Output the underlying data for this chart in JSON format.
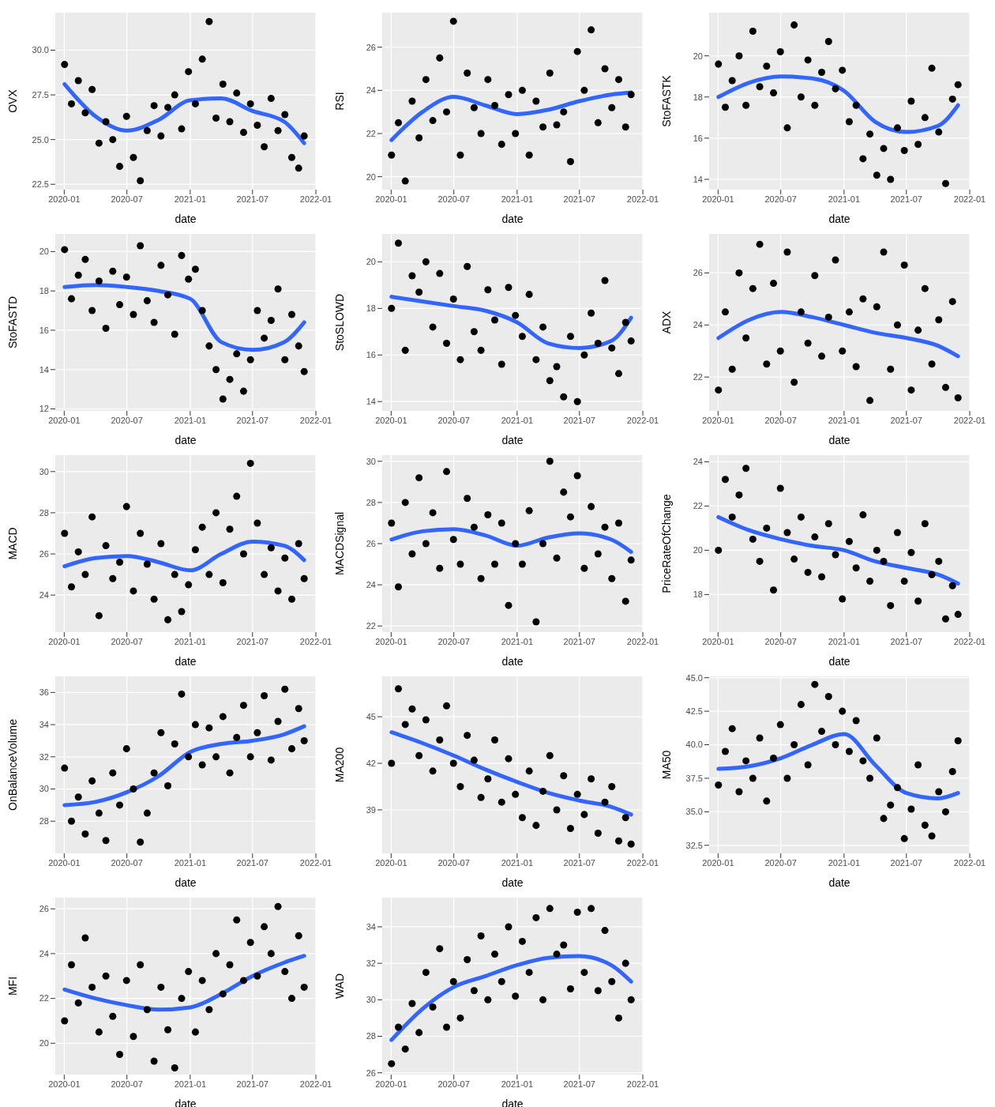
{
  "chart_data": [
    {
      "type": "scatter",
      "xlabel": "date",
      "ylabel": "OVX",
      "marker": "circle",
      "grid": true,
      "xlim": [
        "2019-12-06",
        "2022-01-01"
      ],
      "xticks": [
        "2020-01",
        "2020-07",
        "2021-01",
        "2021-07",
        "2022-01"
      ],
      "ylim": [
        22.2,
        32.1
      ],
      "yticks": [
        {
          "value": 22.5,
          "label": "22.5"
        },
        {
          "value": 25,
          "label": "25.0"
        },
        {
          "value": 27.5,
          "label": "27.5"
        },
        {
          "value": 30,
          "label": "30.0"
        }
      ],
      "x": [
        "2020-01-02",
        "2020-01-22",
        "2020-02-11",
        "2020-03-02",
        "2020-03-22",
        "2020-04-11",
        "2020-05-01",
        "2020-05-21",
        "2020-06-10",
        "2020-06-30",
        "2020-07-20",
        "2020-08-09",
        "2020-08-29",
        "2020-09-18",
        "2020-10-08",
        "2020-10-28",
        "2020-11-17",
        "2020-12-07",
        "2020-12-27",
        "2021-01-16",
        "2021-02-05",
        "2021-02-25",
        "2021-03-17",
        "2021-04-06",
        "2021-04-26",
        "2021-05-16",
        "2021-06-05",
        "2021-06-25",
        "2021-07-15",
        "2021-08-04",
        "2021-08-24",
        "2021-09-13",
        "2021-10-03",
        "2021-10-23",
        "2021-11-12",
        "2021-11-28"
      ],
      "series": [
        {
          "color": "#000000",
          "values": [
            29.2,
            27.0,
            28.3,
            26.5,
            27.8,
            24.8,
            26.0,
            25.0,
            23.5,
            26.3,
            24.0,
            22.7,
            25.5,
            26.9,
            25.2,
            26.8,
            27.5,
            25.6,
            28.8,
            27.0,
            29.5,
            31.6,
            26.2,
            28.1,
            26.0,
            27.6,
            25.4,
            27.0,
            25.8,
            24.6,
            27.3,
            25.5,
            26.4,
            24.0,
            23.4,
            25.2
          ]
        },
        {
          "type": "line",
          "marker": "none",
          "color": "#3366ff",
          "x": [
            "2020-01-02",
            "2020-04-01",
            "2020-07-01",
            "2020-10-01",
            "2021-01-01",
            "2021-04-01",
            "2021-07-01",
            "2021-10-01",
            "2021-11-28"
          ],
          "values": [
            28.1,
            26.3,
            25.5,
            26.1,
            27.2,
            27.3,
            26.6,
            26.0,
            24.8
          ]
        }
      ]
    },
    {
      "type": "scatter",
      "xlabel": "date",
      "ylabel": "RSI",
      "marker": "circle",
      "grid": true,
      "xlim": [
        "2019-12-06",
        "2022-01-01"
      ],
      "xticks": [
        "2020-01",
        "2020-07",
        "2021-01",
        "2021-07",
        "2022-01"
      ],
      "ylim": [
        19.4,
        27.6
      ],
      "yticks": [
        20,
        22,
        24,
        26
      ],
      "x": [
        "2020-01-02",
        "2020-01-22",
        "2020-02-11",
        "2020-03-02",
        "2020-03-22",
        "2020-04-11",
        "2020-05-01",
        "2020-05-21",
        "2020-06-10",
        "2020-06-30",
        "2020-07-20",
        "2020-08-09",
        "2020-08-29",
        "2020-09-18",
        "2020-10-08",
        "2020-10-28",
        "2020-11-17",
        "2020-12-07",
        "2020-12-27",
        "2021-01-16",
        "2021-02-05",
        "2021-02-25",
        "2021-03-17",
        "2021-04-06",
        "2021-04-26",
        "2021-05-16",
        "2021-06-05",
        "2021-06-25",
        "2021-07-15",
        "2021-08-04",
        "2021-08-24",
        "2021-09-13",
        "2021-10-03",
        "2021-10-23",
        "2021-11-12",
        "2021-11-28"
      ],
      "series": [
        {
          "color": "#000000",
          "values": [
            21.0,
            22.5,
            19.8,
            23.5,
            21.8,
            24.5,
            22.6,
            25.5,
            23.0,
            27.2,
            21.0,
            24.8,
            23.2,
            22.0,
            24.5,
            23.3,
            21.5,
            23.8,
            22.0,
            24.0,
            21.0,
            23.5,
            22.3,
            24.8,
            22.4,
            23.0,
            20.7,
            25.8,
            24.0,
            26.8,
            22.5,
            25.0,
            23.2,
            24.5,
            22.3,
            23.8
          ]
        },
        {
          "type": "line",
          "marker": "none",
          "color": "#3366ff",
          "x": [
            "2020-01-02",
            "2020-04-01",
            "2020-07-01",
            "2020-10-01",
            "2021-01-01",
            "2021-04-01",
            "2021-07-01",
            "2021-10-01",
            "2021-11-28"
          ],
          "values": [
            21.7,
            23.0,
            23.7,
            23.3,
            22.9,
            23.1,
            23.5,
            23.8,
            23.9
          ]
        }
      ]
    },
    {
      "type": "scatter",
      "xlabel": "date",
      "ylabel": "StoFASTK",
      "marker": "circle",
      "grid": true,
      "xlim": [
        "2019-12-06",
        "2022-01-01"
      ],
      "xticks": [
        "2020-01",
        "2020-07",
        "2021-01",
        "2021-07",
        "2022-01"
      ],
      "ylim": [
        13.5,
        22.1
      ],
      "yticks": [
        14,
        16,
        18,
        20
      ],
      "x": [
        "2020-01-02",
        "2020-01-22",
        "2020-02-11",
        "2020-03-02",
        "2020-03-22",
        "2020-04-11",
        "2020-05-01",
        "2020-05-21",
        "2020-06-10",
        "2020-06-30",
        "2020-07-20",
        "2020-08-09",
        "2020-08-29",
        "2020-09-18",
        "2020-10-08",
        "2020-10-28",
        "2020-11-17",
        "2020-12-07",
        "2020-12-27",
        "2021-01-16",
        "2021-02-05",
        "2021-02-25",
        "2021-03-17",
        "2021-04-06",
        "2021-04-26",
        "2021-05-16",
        "2021-06-05",
        "2021-06-25",
        "2021-07-15",
        "2021-08-04",
        "2021-08-24",
        "2021-09-13",
        "2021-10-03",
        "2021-10-23",
        "2021-11-12",
        "2021-11-28"
      ],
      "series": [
        {
          "color": "#000000",
          "values": [
            19.6,
            17.5,
            18.8,
            20.0,
            17.6,
            21.2,
            18.5,
            19.5,
            18.2,
            20.2,
            16.5,
            21.5,
            18.0,
            19.8,
            17.6,
            19.2,
            20.7,
            18.4,
            19.3,
            16.8,
            17.6,
            15.0,
            16.2,
            14.2,
            15.5,
            14.0,
            16.5,
            15.4,
            17.8,
            15.7,
            17.0,
            19.4,
            16.3,
            13.8,
            17.9,
            18.6
          ]
        },
        {
          "type": "line",
          "marker": "none",
          "color": "#3366ff",
          "x": [
            "2020-01-02",
            "2020-04-01",
            "2020-07-01",
            "2020-10-01",
            "2021-01-01",
            "2021-04-01",
            "2021-07-01",
            "2021-10-01",
            "2021-11-28"
          ],
          "values": [
            18.0,
            18.7,
            19.0,
            18.9,
            18.3,
            16.8,
            16.3,
            16.6,
            17.6
          ]
        }
      ]
    },
    {
      "type": "scatter",
      "xlabel": "date",
      "ylabel": "StoFASTD",
      "marker": "circle",
      "grid": true,
      "xlim": [
        "2019-12-06",
        "2022-01-01"
      ],
      "xticks": [
        "2020-01",
        "2020-07",
        "2021-01",
        "2021-07",
        "2022-01"
      ],
      "ylim": [
        11.9,
        20.9
      ],
      "yticks": [
        12,
        14,
        16,
        18,
        20
      ],
      "x": [
        "2020-01-02",
        "2020-01-22",
        "2020-02-11",
        "2020-03-02",
        "2020-03-22",
        "2020-04-11",
        "2020-05-01",
        "2020-05-21",
        "2020-06-10",
        "2020-06-30",
        "2020-07-20",
        "2020-08-09",
        "2020-08-29",
        "2020-09-18",
        "2020-10-08",
        "2020-10-28",
        "2020-11-17",
        "2020-12-07",
        "2020-12-27",
        "2021-01-16",
        "2021-02-05",
        "2021-02-25",
        "2021-03-17",
        "2021-04-06",
        "2021-04-26",
        "2021-05-16",
        "2021-06-05",
        "2021-06-25",
        "2021-07-15",
        "2021-08-04",
        "2021-08-24",
        "2021-09-13",
        "2021-10-03",
        "2021-10-23",
        "2021-11-12",
        "2021-11-28"
      ],
      "series": [
        {
          "color": "#000000",
          "values": [
            20.1,
            17.6,
            18.8,
            19.6,
            17.0,
            18.5,
            16.1,
            19.0,
            17.3,
            18.7,
            16.8,
            20.3,
            17.5,
            16.4,
            19.3,
            17.8,
            15.8,
            19.8,
            18.6,
            19.1,
            17.0,
            15.2,
            14.0,
            12.5,
            13.5,
            14.8,
            12.9,
            14.5,
            17.0,
            15.6,
            16.5,
            18.1,
            14.5,
            16.8,
            15.2,
            13.9
          ]
        },
        {
          "type": "line",
          "marker": "none",
          "color": "#3366ff",
          "x": [
            "2020-01-02",
            "2020-04-01",
            "2020-07-01",
            "2020-10-01",
            "2021-01-01",
            "2021-04-01",
            "2021-07-01",
            "2021-10-01",
            "2021-11-28"
          ],
          "values": [
            18.2,
            18.3,
            18.2,
            18.0,
            17.6,
            15.4,
            15.0,
            15.4,
            16.4
          ]
        }
      ]
    },
    {
      "type": "scatter",
      "xlabel": "date",
      "ylabel": "StoSLOWD",
      "marker": "circle",
      "grid": true,
      "xlim": [
        "2019-12-06",
        "2022-01-01"
      ],
      "xticks": [
        "2020-01",
        "2020-07",
        "2021-01",
        "2021-07",
        "2022-01"
      ],
      "ylim": [
        13.6,
        21.2
      ],
      "yticks": [
        14,
        16,
        18,
        20
      ],
      "x": [
        "2020-01-02",
        "2020-01-22",
        "2020-02-11",
        "2020-03-02",
        "2020-03-22",
        "2020-04-11",
        "2020-05-01",
        "2020-05-21",
        "2020-06-10",
        "2020-06-30",
        "2020-07-20",
        "2020-08-09",
        "2020-08-29",
        "2020-09-18",
        "2020-10-08",
        "2020-10-28",
        "2020-11-17",
        "2020-12-07",
        "2020-12-27",
        "2021-01-16",
        "2021-02-05",
        "2021-02-25",
        "2021-03-17",
        "2021-04-06",
        "2021-04-26",
        "2021-05-16",
        "2021-06-05",
        "2021-06-25",
        "2021-07-15",
        "2021-08-04",
        "2021-08-24",
        "2021-09-13",
        "2021-10-03",
        "2021-10-23",
        "2021-11-12",
        "2021-11-28"
      ],
      "series": [
        {
          "color": "#000000",
          "values": [
            18.0,
            20.8,
            16.2,
            19.4,
            18.7,
            20.0,
            17.2,
            19.5,
            16.5,
            18.4,
            15.8,
            19.8,
            17.0,
            16.2,
            18.8,
            17.5,
            15.6,
            18.9,
            17.7,
            16.8,
            18.6,
            15.8,
            17.2,
            14.9,
            15.5,
            14.2,
            16.8,
            14.0,
            16.0,
            17.8,
            16.5,
            19.2,
            16.3,
            15.2,
            17.4,
            16.6
          ]
        },
        {
          "type": "line",
          "marker": "none",
          "color": "#3366ff",
          "x": [
            "2020-01-02",
            "2020-04-01",
            "2020-07-01",
            "2020-10-01",
            "2021-01-01",
            "2021-04-01",
            "2021-07-01",
            "2021-10-01",
            "2021-11-28"
          ],
          "values": [
            18.5,
            18.3,
            18.1,
            17.9,
            17.4,
            16.5,
            16.3,
            16.6,
            17.6
          ]
        }
      ]
    },
    {
      "type": "scatter",
      "xlabel": "date",
      "ylabel": "ADX",
      "marker": "circle",
      "grid": true,
      "xlim": [
        "2019-12-06",
        "2022-01-01"
      ],
      "xticks": [
        "2020-01",
        "2020-07",
        "2021-01",
        "2021-07",
        "2022-01"
      ],
      "ylim": [
        20.7,
        27.5
      ],
      "yticks": [
        22,
        24,
        26
      ],
      "x": [
        "2020-01-02",
        "2020-01-22",
        "2020-02-11",
        "2020-03-02",
        "2020-03-22",
        "2020-04-11",
        "2020-05-01",
        "2020-05-21",
        "2020-06-10",
        "2020-06-30",
        "2020-07-20",
        "2020-08-09",
        "2020-08-29",
        "2020-09-18",
        "2020-10-08",
        "2020-10-28",
        "2020-11-17",
        "2020-12-07",
        "2020-12-27",
        "2021-01-16",
        "2021-02-05",
        "2021-02-25",
        "2021-03-17",
        "2021-04-06",
        "2021-04-26",
        "2021-05-16",
        "2021-06-05",
        "2021-06-25",
        "2021-07-15",
        "2021-08-04",
        "2021-08-24",
        "2021-09-13",
        "2021-10-03",
        "2021-10-23",
        "2021-11-12",
        "2021-11-28"
      ],
      "series": [
        {
          "color": "#000000",
          "values": [
            21.5,
            24.5,
            22.3,
            26.0,
            23.5,
            25.4,
            27.1,
            22.5,
            25.6,
            23.0,
            26.8,
            21.8,
            24.5,
            23.3,
            25.9,
            22.8,
            24.3,
            26.5,
            23.0,
            24.5,
            22.4,
            25.0,
            21.1,
            24.7,
            26.8,
            22.3,
            24.0,
            26.3,
            21.5,
            23.8,
            25.4,
            22.5,
            24.2,
            21.6,
            24.9,
            21.2
          ]
        },
        {
          "type": "line",
          "marker": "none",
          "color": "#3366ff",
          "x": [
            "2020-01-02",
            "2020-04-01",
            "2020-07-01",
            "2020-10-01",
            "2021-01-01",
            "2021-04-01",
            "2021-07-01",
            "2021-10-01",
            "2021-11-28"
          ],
          "values": [
            23.5,
            24.2,
            24.5,
            24.3,
            24.0,
            23.7,
            23.5,
            23.2,
            22.8
          ]
        }
      ]
    },
    {
      "type": "scatter",
      "xlabel": "date",
      "ylabel": "MACD",
      "marker": "circle",
      "grid": true,
      "xlim": [
        "2019-12-06",
        "2022-01-01"
      ],
      "xticks": [
        "2020-01",
        "2020-07",
        "2021-01",
        "2021-07",
        "2022-01"
      ],
      "ylim": [
        22.2,
        30.8
      ],
      "yticks": [
        24,
        26,
        28,
        30
      ],
      "x": [
        "2020-01-02",
        "2020-01-22",
        "2020-02-11",
        "2020-03-02",
        "2020-03-22",
        "2020-04-11",
        "2020-05-01",
        "2020-05-21",
        "2020-06-10",
        "2020-06-30",
        "2020-07-20",
        "2020-08-09",
        "2020-08-29",
        "2020-09-18",
        "2020-10-08",
        "2020-10-28",
        "2020-11-17",
        "2020-12-07",
        "2020-12-27",
        "2021-01-16",
        "2021-02-05",
        "2021-02-25",
        "2021-03-17",
        "2021-04-06",
        "2021-04-26",
        "2021-05-16",
        "2021-06-05",
        "2021-06-25",
        "2021-07-15",
        "2021-08-04",
        "2021-08-24",
        "2021-09-13",
        "2021-10-03",
        "2021-10-23",
        "2021-11-12",
        "2021-11-28"
      ],
      "series": [
        {
          "color": "#000000",
          "values": [
            27.0,
            24.4,
            26.1,
            25.0,
            27.8,
            23.0,
            26.4,
            24.8,
            25.6,
            28.3,
            24.2,
            27.0,
            25.5,
            23.8,
            26.5,
            22.8,
            25.0,
            23.2,
            24.5,
            26.2,
            27.3,
            25.0,
            28.0,
            24.6,
            27.2,
            28.8,
            26.0,
            30.4,
            27.5,
            25.0,
            26.3,
            24.2,
            25.8,
            23.8,
            26.5,
            24.8
          ]
        },
        {
          "type": "line",
          "marker": "none",
          "color": "#3366ff",
          "x": [
            "2020-01-02",
            "2020-04-01",
            "2020-07-01",
            "2020-10-01",
            "2021-01-01",
            "2021-04-01",
            "2021-07-01",
            "2021-10-01",
            "2021-11-28"
          ],
          "values": [
            25.4,
            25.8,
            25.9,
            25.6,
            25.2,
            26.0,
            26.6,
            26.4,
            25.7
          ]
        }
      ]
    },
    {
      "type": "scatter",
      "xlabel": "date",
      "ylabel": "MACDSignal",
      "marker": "circle",
      "grid": true,
      "xlim": [
        "2019-12-06",
        "2022-01-01"
      ],
      "xticks": [
        "2020-01",
        "2020-07",
        "2021-01",
        "2021-07",
        "2022-01"
      ],
      "ylim": [
        21.7,
        30.3
      ],
      "yticks": [
        22,
        24,
        26,
        28,
        30
      ],
      "x": [
        "2020-01-02",
        "2020-01-22",
        "2020-02-11",
        "2020-03-02",
        "2020-03-22",
        "2020-04-11",
        "2020-05-01",
        "2020-05-21",
        "2020-06-10",
        "2020-06-30",
        "2020-07-20",
        "2020-08-09",
        "2020-08-29",
        "2020-09-18",
        "2020-10-08",
        "2020-10-28",
        "2020-11-17",
        "2020-12-07",
        "2020-12-27",
        "2021-01-16",
        "2021-02-05",
        "2021-02-25",
        "2021-03-17",
        "2021-04-06",
        "2021-04-26",
        "2021-05-16",
        "2021-06-05",
        "2021-06-25",
        "2021-07-15",
        "2021-08-04",
        "2021-08-24",
        "2021-09-13",
        "2021-10-03",
        "2021-10-23",
        "2021-11-12",
        "2021-11-28"
      ],
      "series": [
        {
          "color": "#000000",
          "values": [
            27.0,
            23.9,
            28.0,
            25.5,
            29.2,
            26.0,
            27.5,
            24.8,
            29.5,
            26.2,
            25.0,
            28.2,
            26.8,
            24.3,
            27.4,
            25.0,
            27.0,
            23.0,
            26.0,
            25.0,
            27.6,
            22.2,
            26.0,
            30.0,
            25.3,
            28.5,
            27.3,
            29.3,
            24.8,
            27.8,
            25.5,
            26.8,
            24.3,
            27.0,
            23.2,
            25.2
          ]
        },
        {
          "type": "line",
          "marker": "none",
          "color": "#3366ff",
          "x": [
            "2020-01-02",
            "2020-04-01",
            "2020-07-01",
            "2020-10-01",
            "2021-01-01",
            "2021-04-01",
            "2021-07-01",
            "2021-10-01",
            "2021-11-28"
          ],
          "values": [
            26.2,
            26.6,
            26.7,
            26.4,
            25.9,
            26.3,
            26.5,
            26.2,
            25.6
          ]
        }
      ]
    },
    {
      "type": "scatter",
      "xlabel": "date",
      "ylabel": "PriceRateOfChange",
      "marker": "circle",
      "grid": true,
      "xlim": [
        "2019-12-06",
        "2022-01-01"
      ],
      "xticks": [
        "2020-01",
        "2020-07",
        "2021-01",
        "2021-07",
        "2022-01"
      ],
      "ylim": [
        16.3,
        24.3
      ],
      "yticks": [
        18,
        20,
        22,
        24
      ],
      "x": [
        "2020-01-02",
        "2020-01-22",
        "2020-02-11",
        "2020-03-02",
        "2020-03-22",
        "2020-04-11",
        "2020-05-01",
        "2020-05-21",
        "2020-06-10",
        "2020-06-30",
        "2020-07-20",
        "2020-08-09",
        "2020-08-29",
        "2020-09-18",
        "2020-10-08",
        "2020-10-28",
        "2020-11-17",
        "2020-12-07",
        "2020-12-27",
        "2021-01-16",
        "2021-02-05",
        "2021-02-25",
        "2021-03-17",
        "2021-04-06",
        "2021-04-26",
        "2021-05-16",
        "2021-06-05",
        "2021-06-25",
        "2021-07-15",
        "2021-08-04",
        "2021-08-24",
        "2021-09-13",
        "2021-10-03",
        "2021-10-23",
        "2021-11-12",
        "2021-11-28"
      ],
      "series": [
        {
          "color": "#000000",
          "values": [
            20.0,
            23.2,
            21.5,
            22.5,
            23.7,
            20.5,
            19.5,
            21.0,
            18.2,
            22.8,
            20.8,
            19.6,
            21.5,
            19.0,
            20.6,
            18.8,
            21.2,
            19.8,
            17.8,
            20.4,
            19.2,
            21.6,
            18.6,
            20.0,
            19.5,
            17.5,
            20.8,
            18.6,
            19.9,
            17.7,
            21.2,
            18.9,
            19.5,
            16.9,
            18.4,
            17.1
          ]
        },
        {
          "type": "line",
          "marker": "none",
          "color": "#3366ff",
          "x": [
            "2020-01-02",
            "2020-04-01",
            "2020-07-01",
            "2020-10-01",
            "2021-01-01",
            "2021-04-01",
            "2021-07-01",
            "2021-10-01",
            "2021-11-28"
          ],
          "values": [
            21.5,
            20.9,
            20.5,
            20.2,
            20.0,
            19.5,
            19.2,
            18.9,
            18.5
          ]
        }
      ]
    },
    {
      "type": "scatter",
      "xlabel": "date",
      "ylabel": "OnBalanceVolume",
      "marker": "circle",
      "grid": true,
      "xlim": [
        "2019-12-06",
        "2022-01-01"
      ],
      "xticks": [
        "2020-01",
        "2020-07",
        "2021-01",
        "2021-07",
        "2022-01"
      ],
      "ylim": [
        26,
        37
      ],
      "yticks": [
        28,
        30,
        32,
        34,
        36
      ],
      "x": [
        "2020-01-02",
        "2020-01-22",
        "2020-02-11",
        "2020-03-02",
        "2020-03-22",
        "2020-04-11",
        "2020-05-01",
        "2020-05-21",
        "2020-06-10",
        "2020-06-30",
        "2020-07-20",
        "2020-08-09",
        "2020-08-29",
        "2020-09-18",
        "2020-10-08",
        "2020-10-28",
        "2020-11-17",
        "2020-12-07",
        "2020-12-27",
        "2021-01-16",
        "2021-02-05",
        "2021-02-25",
        "2021-03-17",
        "2021-04-06",
        "2021-04-26",
        "2021-05-16",
        "2021-06-05",
        "2021-06-25",
        "2021-07-15",
        "2021-08-04",
        "2021-08-24",
        "2021-09-13",
        "2021-10-03",
        "2021-10-23",
        "2021-11-12",
        "2021-11-28"
      ],
      "series": [
        {
          "color": "#000000",
          "values": [
            31.3,
            28.0,
            29.5,
            27.2,
            30.5,
            28.5,
            26.8,
            31.0,
            29.0,
            32.5,
            30.0,
            26.7,
            28.5,
            31.0,
            33.5,
            30.2,
            32.8,
            35.9,
            32.0,
            34.0,
            31.5,
            33.8,
            32.0,
            34.5,
            31.0,
            33.2,
            35.2,
            32.0,
            33.5,
            35.8,
            31.8,
            34.2,
            36.2,
            32.5,
            35.0,
            33.0
          ]
        },
        {
          "type": "line",
          "marker": "none",
          "color": "#3366ff",
          "x": [
            "2020-01-02",
            "2020-04-01",
            "2020-07-01",
            "2020-10-01",
            "2021-01-01",
            "2021-04-01",
            "2021-07-01",
            "2021-10-01",
            "2021-11-28"
          ],
          "values": [
            29.0,
            29.2,
            29.8,
            30.8,
            32.3,
            32.8,
            33.0,
            33.4,
            33.9
          ]
        }
      ]
    },
    {
      "type": "scatter",
      "xlabel": "date",
      "ylabel": "MA200",
      "marker": "circle",
      "grid": true,
      "xlim": [
        "2019-12-06",
        "2022-01-01"
      ],
      "xticks": [
        "2020-01",
        "2020-07",
        "2021-01",
        "2021-07",
        "2022-01"
      ],
      "ylim": [
        36.2,
        47.6
      ],
      "yticks": [
        39,
        42,
        45
      ],
      "x": [
        "2020-01-02",
        "2020-01-22",
        "2020-02-11",
        "2020-03-02",
        "2020-03-22",
        "2020-04-11",
        "2020-05-01",
        "2020-05-21",
        "2020-06-10",
        "2020-06-30",
        "2020-07-20",
        "2020-08-09",
        "2020-08-29",
        "2020-09-18",
        "2020-10-08",
        "2020-10-28",
        "2020-11-17",
        "2020-12-07",
        "2020-12-27",
        "2021-01-16",
        "2021-02-05",
        "2021-02-25",
        "2021-03-17",
        "2021-04-06",
        "2021-04-26",
        "2021-05-16",
        "2021-06-05",
        "2021-06-25",
        "2021-07-15",
        "2021-08-04",
        "2021-08-24",
        "2021-09-13",
        "2021-10-03",
        "2021-10-23",
        "2021-11-12",
        "2021-11-28"
      ],
      "series": [
        {
          "color": "#000000",
          "values": [
            42.0,
            46.8,
            44.5,
            45.5,
            42.5,
            44.8,
            41.5,
            43.5,
            45.7,
            42.0,
            40.5,
            43.8,
            42.2,
            39.8,
            41.0,
            43.5,
            39.5,
            42.3,
            40.0,
            38.5,
            41.5,
            38.0,
            40.2,
            42.5,
            39.0,
            41.2,
            37.8,
            40.0,
            38.7,
            41.0,
            37.5,
            39.5,
            40.5,
            37.0,
            38.5,
            36.8
          ]
        },
        {
          "type": "line",
          "marker": "none",
          "color": "#3366ff",
          "x": [
            "2020-01-02",
            "2020-04-01",
            "2020-07-01",
            "2020-10-01",
            "2021-01-01",
            "2021-04-01",
            "2021-07-01",
            "2021-10-01",
            "2021-11-28"
          ],
          "values": [
            44.0,
            43.3,
            42.5,
            41.6,
            40.8,
            40.1,
            39.6,
            39.2,
            38.7
          ]
        }
      ]
    },
    {
      "type": "scatter",
      "xlabel": "date",
      "ylabel": "MA50",
      "marker": "circle",
      "grid": true,
      "xlim": [
        "2019-12-06",
        "2022-01-01"
      ],
      "xticks": [
        "2020-01",
        "2020-07",
        "2021-01",
        "2021-07",
        "2022-01"
      ],
      "ylim": [
        31.9,
        45.1
      ],
      "yticks": [
        {
          "value": 32.5,
          "label": "32.5"
        },
        {
          "value": 35,
          "label": "35.0"
        },
        {
          "value": 37.5,
          "label": "37.5"
        },
        {
          "value": 40,
          "label": "40.0"
        },
        {
          "value": 42.5,
          "label": "42.5"
        },
        {
          "value": 45,
          "label": "45.0"
        }
      ],
      "x": [
        "2020-01-02",
        "2020-01-22",
        "2020-02-11",
        "2020-03-02",
        "2020-03-22",
        "2020-04-11",
        "2020-05-01",
        "2020-05-21",
        "2020-06-10",
        "2020-06-30",
        "2020-07-20",
        "2020-08-09",
        "2020-08-29",
        "2020-09-18",
        "2020-10-08",
        "2020-10-28",
        "2020-11-17",
        "2020-12-07",
        "2020-12-27",
        "2021-01-16",
        "2021-02-05",
        "2021-02-25",
        "2021-03-17",
        "2021-04-06",
        "2021-04-26",
        "2021-05-16",
        "2021-06-05",
        "2021-06-25",
        "2021-07-15",
        "2021-08-04",
        "2021-08-24",
        "2021-09-13",
        "2021-10-03",
        "2021-10-23",
        "2021-11-12",
        "2021-11-28"
      ],
      "series": [
        {
          "color": "#000000",
          "values": [
            37.0,
            39.5,
            41.2,
            36.5,
            38.8,
            37.5,
            40.5,
            35.8,
            39.0,
            41.5,
            37.5,
            40.0,
            43.0,
            38.5,
            44.5,
            41.0,
            43.6,
            40.0,
            42.5,
            39.5,
            41.8,
            38.8,
            37.5,
            40.5,
            34.5,
            35.5,
            36.8,
            33.0,
            35.2,
            38.5,
            34.0,
            33.2,
            36.5,
            35.0,
            38.0,
            40.3
          ]
        },
        {
          "type": "line",
          "marker": "none",
          "color": "#3366ff",
          "x": [
            "2020-01-02",
            "2020-04-01",
            "2020-07-01",
            "2020-10-01",
            "2021-01-01",
            "2021-04-01",
            "2021-07-01",
            "2021-10-01",
            "2021-11-28"
          ],
          "values": [
            38.2,
            38.4,
            39.0,
            40.0,
            40.8,
            38.5,
            36.4,
            36.0,
            36.4
          ]
        }
      ]
    },
    {
      "type": "scatter",
      "xlabel": "date",
      "ylabel": "MFI",
      "marker": "circle",
      "grid": true,
      "xlim": [
        "2019-12-06",
        "2022-01-01"
      ],
      "xticks": [
        "2020-01",
        "2020-07",
        "2021-01",
        "2021-07",
        "2022-01"
      ],
      "ylim": [
        18.6,
        26.5
      ],
      "yticks": [
        20,
        22,
        24,
        26
      ],
      "x": [
        "2020-01-02",
        "2020-01-22",
        "2020-02-11",
        "2020-03-02",
        "2020-03-22",
        "2020-04-11",
        "2020-05-01",
        "2020-05-21",
        "2020-06-10",
        "2020-06-30",
        "2020-07-20",
        "2020-08-09",
        "2020-08-29",
        "2020-09-18",
        "2020-10-08",
        "2020-10-28",
        "2020-11-17",
        "2020-12-07",
        "2020-12-27",
        "2021-01-16",
        "2021-02-05",
        "2021-02-25",
        "2021-03-17",
        "2021-04-06",
        "2021-04-26",
        "2021-05-16",
        "2021-06-05",
        "2021-06-25",
        "2021-07-15",
        "2021-08-04",
        "2021-08-24",
        "2021-09-13",
        "2021-10-03",
        "2021-10-23",
        "2021-11-12",
        "2021-11-28"
      ],
      "series": [
        {
          "color": "#000000",
          "values": [
            21.0,
            23.5,
            21.8,
            24.7,
            22.5,
            20.5,
            23.0,
            21.2,
            19.5,
            22.8,
            20.3,
            23.5,
            21.5,
            19.2,
            22.5,
            20.6,
            18.9,
            22.0,
            23.2,
            20.5,
            22.8,
            21.5,
            24.0,
            22.2,
            23.5,
            25.5,
            22.8,
            24.5,
            23.0,
            25.2,
            24.0,
            26.1,
            23.2,
            22.0,
            24.8,
            22.5
          ]
        },
        {
          "type": "line",
          "marker": "none",
          "color": "#3366ff",
          "x": [
            "2020-01-02",
            "2020-04-01",
            "2020-07-01",
            "2020-10-01",
            "2021-01-01",
            "2021-04-01",
            "2021-07-01",
            "2021-10-01",
            "2021-11-28"
          ],
          "values": [
            22.4,
            22.0,
            21.7,
            21.5,
            21.6,
            22.2,
            23.0,
            23.6,
            23.9
          ]
        }
      ]
    },
    {
      "type": "scatter",
      "xlabel": "date",
      "ylabel": "WAD",
      "marker": "circle",
      "grid": true,
      "xlim": [
        "2019-12-06",
        "2022-01-01"
      ],
      "xticks": [
        "2020-01",
        "2020-07",
        "2021-01",
        "2021-07",
        "2022-01"
      ],
      "ylim": [
        25.9,
        35.6
      ],
      "yticks": [
        26,
        28,
        30,
        32,
        34
      ],
      "x": [
        "2020-01-02",
        "2020-01-22",
        "2020-02-11",
        "2020-03-02",
        "2020-03-22",
        "2020-04-11",
        "2020-05-01",
        "2020-05-21",
        "2020-06-10",
        "2020-06-30",
        "2020-07-20",
        "2020-08-09",
        "2020-08-29",
        "2020-09-18",
        "2020-10-08",
        "2020-10-28",
        "2020-11-17",
        "2020-12-07",
        "2020-12-27",
        "2021-01-16",
        "2021-02-05",
        "2021-02-25",
        "2021-03-17",
        "2021-04-06",
        "2021-04-26",
        "2021-05-16",
        "2021-06-05",
        "2021-06-25",
        "2021-07-15",
        "2021-08-04",
        "2021-08-24",
        "2021-09-13",
        "2021-10-03",
        "2021-10-23",
        "2021-11-12",
        "2021-11-28"
      ],
      "series": [
        {
          "color": "#000000",
          "values": [
            26.5,
            28.5,
            27.3,
            29.8,
            28.2,
            31.5,
            29.6,
            32.8,
            28.5,
            31.0,
            29.0,
            32.2,
            30.5,
            33.5,
            30.0,
            32.5,
            31.0,
            34.0,
            30.2,
            33.2,
            31.5,
            34.5,
            30.0,
            35.0,
            32.5,
            33.0,
            30.6,
            34.8,
            31.5,
            35.0,
            30.5,
            33.8,
            31.0,
            29.0,
            32.0,
            30.0
          ]
        },
        {
          "type": "line",
          "marker": "none",
          "color": "#3366ff",
          "x": [
            "2020-01-02",
            "2020-04-01",
            "2020-07-01",
            "2020-10-01",
            "2021-01-01",
            "2021-04-01",
            "2021-07-01",
            "2021-10-01",
            "2021-11-28"
          ],
          "values": [
            27.8,
            29.5,
            30.7,
            31.3,
            31.9,
            32.3,
            32.4,
            31.9,
            31.0
          ]
        }
      ]
    }
  ]
}
